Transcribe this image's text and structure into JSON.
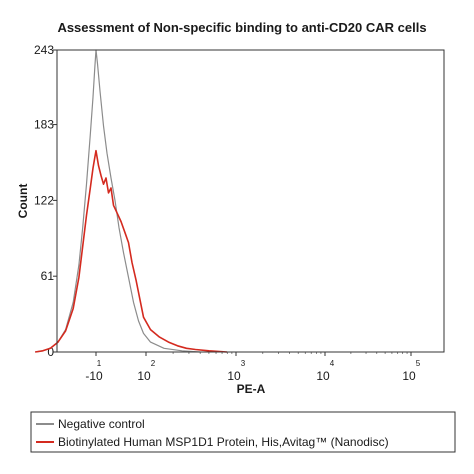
{
  "chart_data": {
    "type": "line",
    "title": "Assessment of Non-specific binding to anti-CD20 CAR cells",
    "xlabel": "PE-A",
    "ylabel": "Count",
    "y_ticks": [
      "0",
      "61",
      "122",
      "183",
      "243"
    ],
    "ylim": [
      0,
      243
    ],
    "x_scale": "biexponential",
    "x_ticks": [
      {
        "base": "-10",
        "exp": "1"
      },
      {
        "base": "10",
        "exp": "2"
      },
      {
        "base": "10",
        "exp": "3"
      },
      {
        "base": "10",
        "exp": "4"
      },
      {
        "base": "10",
        "exp": "5"
      }
    ],
    "legend_position": "bottom",
    "series": [
      {
        "name": "Negative control",
        "color": "#8c8c8c",
        "points": [
          [
            -1.6,
            0
          ],
          [
            -1.4,
            1
          ],
          [
            -1.2,
            3
          ],
          [
            -1.0,
            8
          ],
          [
            -0.8,
            18
          ],
          [
            -0.6,
            40
          ],
          [
            -0.45,
            70
          ],
          [
            -0.35,
            100
          ],
          [
            -0.25,
            135
          ],
          [
            -0.15,
            175
          ],
          [
            -0.08,
            205
          ],
          [
            -0.03,
            230
          ],
          [
            0.0,
            243
          ],
          [
            0.03,
            232
          ],
          [
            0.08,
            210
          ],
          [
            0.15,
            182
          ],
          [
            0.22,
            160
          ],
          [
            0.3,
            140
          ],
          [
            0.38,
            122
          ],
          [
            0.46,
            100
          ],
          [
            0.55,
            80
          ],
          [
            0.65,
            60
          ],
          [
            0.75,
            40
          ],
          [
            0.85,
            25
          ],
          [
            0.95,
            15
          ],
          [
            1.05,
            8
          ],
          [
            1.2,
            3
          ],
          [
            1.4,
            1
          ],
          [
            1.6,
            0
          ]
        ]
      },
      {
        "name": "Biotinylated Human MSP1D1 Protein, His,Avitag™ (Nanodisc)",
        "color": "#d42a1f",
        "points": [
          [
            -1.6,
            0
          ],
          [
            -1.4,
            1
          ],
          [
            -1.2,
            3
          ],
          [
            -1.0,
            8
          ],
          [
            -0.8,
            17
          ],
          [
            -0.6,
            35
          ],
          [
            -0.45,
            60
          ],
          [
            -0.35,
            85
          ],
          [
            -0.25,
            110
          ],
          [
            -0.15,
            132
          ],
          [
            -0.08,
            148
          ],
          [
            -0.03,
            157
          ],
          [
            0.0,
            162
          ],
          [
            0.05,
            150
          ],
          [
            0.1,
            142
          ],
          [
            0.15,
            135
          ],
          [
            0.2,
            140
          ],
          [
            0.25,
            128
          ],
          [
            0.3,
            132
          ],
          [
            0.35,
            118
          ],
          [
            0.42,
            112
          ],
          [
            0.5,
            105
          ],
          [
            0.58,
            96
          ],
          [
            0.65,
            88
          ],
          [
            0.72,
            72
          ],
          [
            0.8,
            58
          ],
          [
            0.88,
            42
          ],
          [
            0.95,
            28
          ],
          [
            1.05,
            18
          ],
          [
            1.15,
            12
          ],
          [
            1.25,
            8
          ],
          [
            1.35,
            5
          ],
          [
            1.45,
            3
          ],
          [
            1.55,
            2
          ],
          [
            1.7,
            1
          ],
          [
            1.9,
            0
          ]
        ]
      }
    ]
  }
}
